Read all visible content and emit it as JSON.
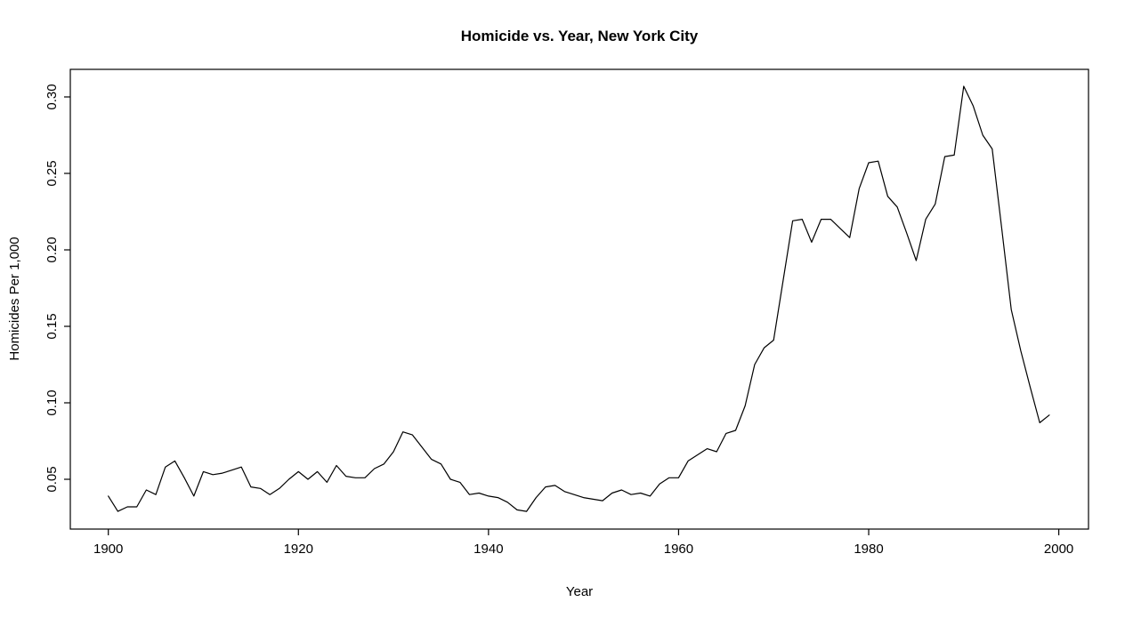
{
  "chart_data": {
    "type": "line",
    "title": "Homicide vs. Year, New York City",
    "xlabel": "Year",
    "ylabel": "Homicides Per 1,000",
    "legend": "none",
    "grid": false,
    "line_color": "#000000",
    "background_color": "#ffffff",
    "xlim": [
      1900,
      2000
    ],
    "ylim": [
      0.05,
      0.3
    ],
    "x_ticks": [
      "1900",
      "1920",
      "1940",
      "1960",
      "1980",
      "2000"
    ],
    "x_tick_values": [
      1900,
      1920,
      1940,
      1960,
      1980,
      2000
    ],
    "y_ticks": [
      "0.05",
      "0.10",
      "0.15",
      "0.20",
      "0.25",
      "0.30"
    ],
    "y_tick_values": [
      0.05,
      0.1,
      0.15,
      0.2,
      0.25,
      0.3
    ],
    "years": [
      1900,
      1901,
      1902,
      1903,
      1904,
      1905,
      1906,
      1907,
      1908,
      1909,
      1910,
      1911,
      1912,
      1913,
      1914,
      1915,
      1916,
      1917,
      1918,
      1919,
      1920,
      1921,
      1922,
      1923,
      1924,
      1925,
      1926,
      1927,
      1928,
      1929,
      1930,
      1931,
      1932,
      1933,
      1934,
      1935,
      1936,
      1937,
      1938,
      1939,
      1940,
      1941,
      1942,
      1943,
      1944,
      1945,
      1946,
      1947,
      1948,
      1949,
      1950,
      1951,
      1952,
      1953,
      1954,
      1955,
      1956,
      1957,
      1958,
      1959,
      1960,
      1961,
      1962,
      1963,
      1964,
      1965,
      1966,
      1967,
      1968,
      1969,
      1970,
      1971,
      1972,
      1973,
      1974,
      1975,
      1976,
      1977,
      1978,
      1979,
      1980,
      1981,
      1982,
      1983,
      1984,
      1985,
      1986,
      1987,
      1988,
      1989,
      1990,
      1991,
      1992,
      1993,
      1994,
      1995,
      1996,
      1997,
      1998,
      1999
    ],
    "values": [
      0.039,
      0.029,
      0.032,
      0.032,
      0.043,
      0.04,
      0.058,
      0.062,
      0.051,
      0.039,
      0.055,
      0.053,
      0.054,
      0.056,
      0.058,
      0.045,
      0.044,
      0.04,
      0.044,
      0.05,
      0.055,
      0.05,
      0.055,
      0.048,
      0.059,
      0.052,
      0.051,
      0.051,
      0.057,
      0.06,
      0.068,
      0.081,
      0.079,
      0.071,
      0.063,
      0.06,
      0.05,
      0.048,
      0.04,
      0.041,
      0.039,
      0.038,
      0.035,
      0.03,
      0.029,
      0.038,
      0.045,
      0.046,
      0.042,
      0.04,
      0.038,
      0.037,
      0.036,
      0.041,
      0.043,
      0.04,
      0.041,
      0.039,
      0.047,
      0.051,
      0.051,
      0.062,
      0.066,
      0.07,
      0.068,
      0.08,
      0.082,
      0.098,
      0.125,
      0.136,
      0.141,
      0.18,
      0.219,
      0.22,
      0.205,
      0.22,
      0.22,
      0.214,
      0.208,
      0.24,
      0.257,
      0.258,
      0.235,
      0.228,
      0.211,
      0.193,
      0.22,
      0.23,
      0.261,
      0.262,
      0.307,
      0.294,
      0.275,
      0.266,
      0.214,
      0.161,
      0.134,
      0.11,
      0.087,
      0.092
    ]
  }
}
